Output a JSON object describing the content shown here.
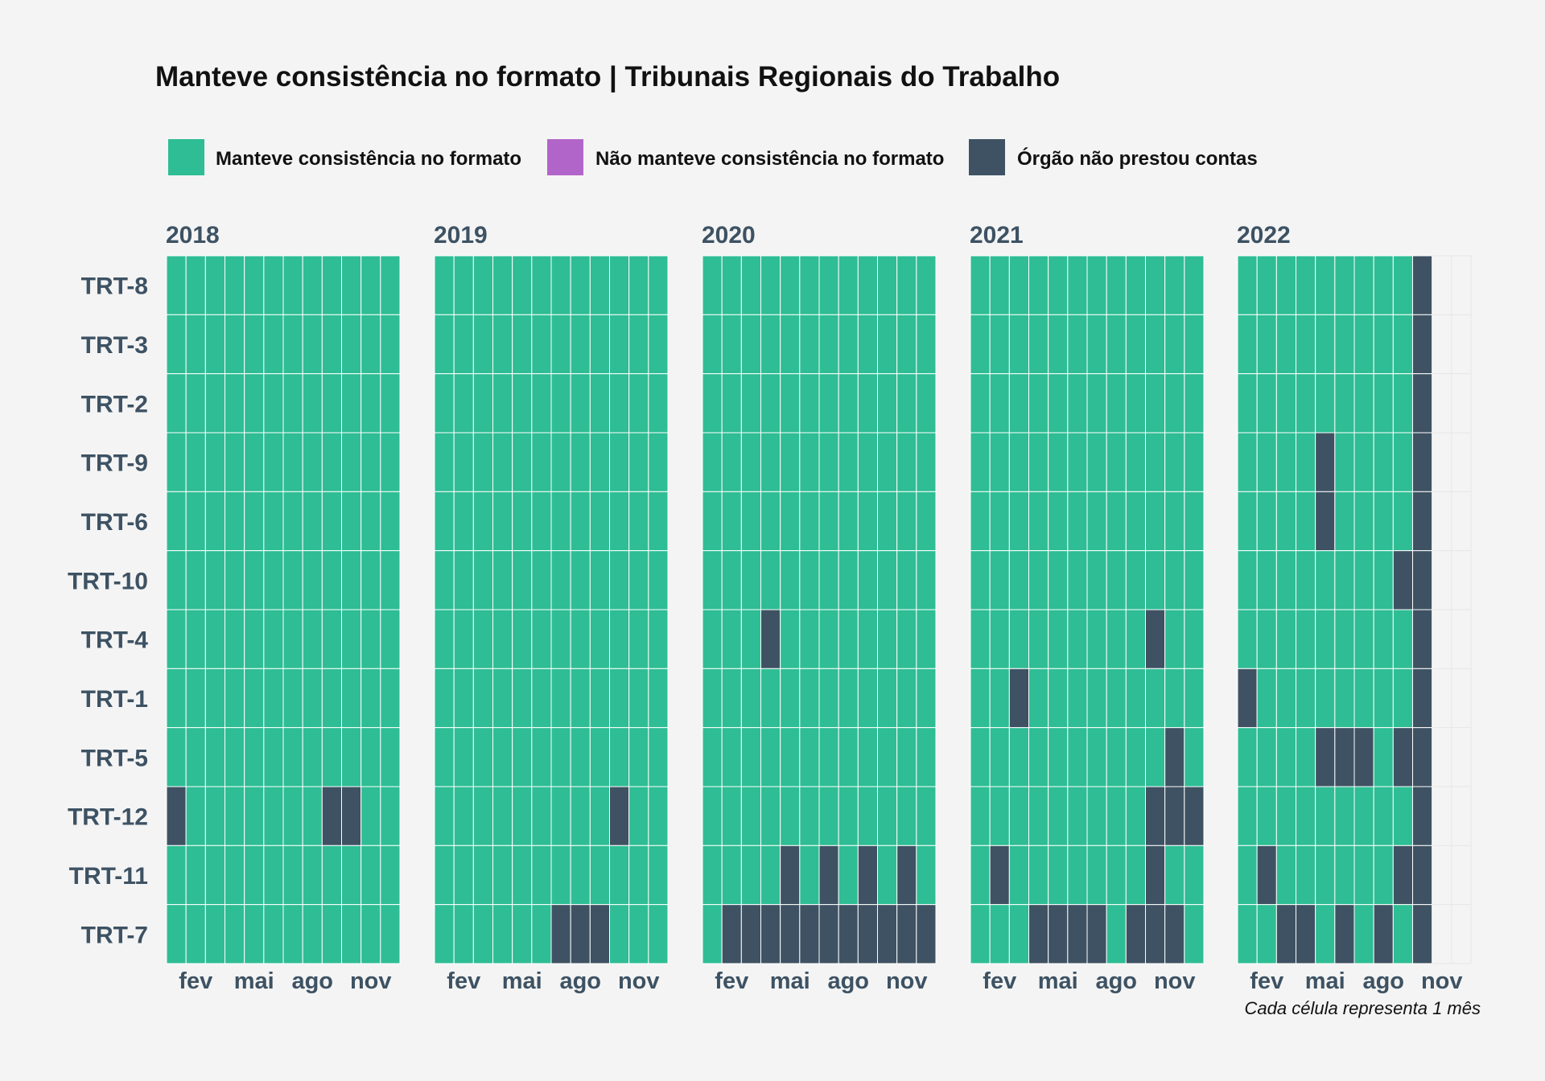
{
  "chart_data": {
    "type": "heatmap",
    "title": "Manteve consistência no formato | Tribunais Regionais do Trabalho",
    "caption": "Cada célula representa 1 mês",
    "legend": {
      "placement": "top",
      "items": [
        {
          "code": "M",
          "label": "Manteve consistência no formato",
          "color": "#2ebd94"
        },
        {
          "code": "N",
          "label": "Não manteve consistência no formato",
          "color": "#b265c8"
        },
        {
          "code": "X",
          "label": "Órgão não prestou contas",
          "color": "#3e5263"
        }
      ]
    },
    "colors": {
      "M": "#2ebd94",
      "N": "#b265c8",
      "X": "#3e5263",
      "empty_grid": "#e6e6e6"
    },
    "x_tick_labels": [
      "fev",
      "mai",
      "ago",
      "nov"
    ],
    "x_tick_months": [
      2,
      5,
      8,
      11
    ],
    "rows": [
      "TRT-8",
      "TRT-3",
      "TRT-2",
      "TRT-9",
      "TRT-6",
      "TRT-10",
      "TRT-4",
      "TRT-1",
      "TRT-5",
      "TRT-12",
      "TRT-11",
      "TRT-7"
    ],
    "years": [
      {
        "year": "2018",
        "months": 12,
        "cells": [
          "MMMMMMMMMMMM",
          "MMMMMMMMMMMM",
          "MMMMMMMMMMMM",
          "MMMMMMMMMMMM",
          "MMMMMMMMMMMM",
          "MMMMMMMMMMMM",
          "MMMMMMMMMMMM",
          "MMMMMMMMMMMM",
          "MMMMMMMMMMMM",
          "XMMMMMMMXXMM",
          "MMMMMMMMMMMM",
          "MMMMMMMMMMMM"
        ]
      },
      {
        "year": "2019",
        "months": 12,
        "cells": [
          "MMMMMMMMMMMM",
          "MMMMMMMMMMMM",
          "MMMMMMMMMMMM",
          "MMMMMMMMMMMM",
          "MMMMMMMMMMMM",
          "MMMMMMMMMMMM",
          "MMMMMMMMMMMM",
          "MMMMMMMMMMMM",
          "MMMMMMMMMMMM",
          "MMMMMMMMMXMM",
          "MMMMMMMMMMMM",
          "MMMMMMXXXMMM"
        ]
      },
      {
        "year": "2020",
        "months": 12,
        "cells": [
          "MMMMMMMMMMMM",
          "MMMMMMMMMMMM",
          "MMMMMMMMMMMM",
          "MMMMMMMMMMMM",
          "MMMMMMMMMMMM",
          "MMMMMMMMMMMM",
          "MMMXMMMMMMMM",
          "MMMMMMMMMMMM",
          "MMMMMMMMMMMM",
          "MMMMMMMMMMMM",
          "MMMMXMXMXMXM",
          "MXXXXXXXXXXX"
        ]
      },
      {
        "year": "2021",
        "months": 12,
        "cells": [
          "MMMMMMMMMMMM",
          "MMMMMMMMMMMM",
          "MMMMMMMMMMMM",
          "MMMMMMMMMMMM",
          "MMMMMMMMMMMM",
          "MMMMMMMMMMMM",
          "MMMMMMMMMXMM",
          "MMXMMMMMMMMM",
          "MMMMMMMMMMXM",
          "MMMMMMMMMXXX",
          "MXMMMMMMMXMM",
          "MMMXXXXMXXXM"
        ]
      },
      {
        "year": "2022",
        "months": 10,
        "cells": [
          "MMMMMMMMMX",
          "MMMMMMMMMX",
          "MMMMMMMMMX",
          "MMMMXMMMMX",
          "MMMMXMMMMX",
          "MMMMMMMMXX",
          "MMMMMMMMMX",
          "XMMMMMMMMX",
          "MMMMXXXMXX",
          "MMMMMMMMMX",
          "MXMMMMMMXX",
          "MMXXMXMXMX"
        ]
      }
    ]
  }
}
